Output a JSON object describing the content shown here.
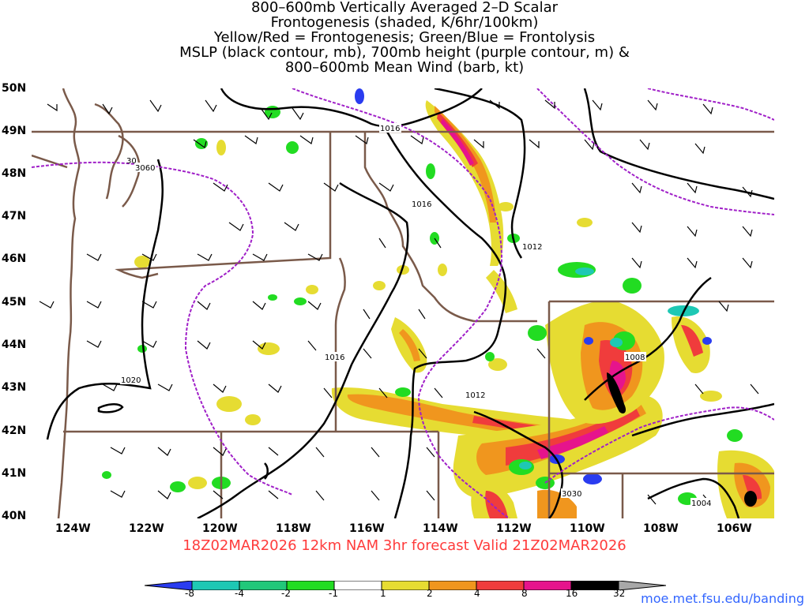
{
  "title_lines": [
    "800–600mb Vertically Averaged 2–D Scalar",
    "Frontogenesis (shaded, K/6hr/100km)",
    "Yellow/Red = Frontogenesis;  Green/Blue = Frontolysis",
    "MSLP (black contour, mb), 700mb height (purple contour, m) &",
    "800–600mb Mean Wind (barb, kt)"
  ],
  "lat_labels": [
    "50N",
    "49N",
    "48N",
    "47N",
    "46N",
    "45N",
    "44N",
    "43N",
    "42N",
    "41N",
    "40N"
  ],
  "lon_labels": [
    "124W",
    "122W",
    "120W",
    "118W",
    "116W",
    "114W",
    "112W",
    "110W",
    "108W",
    "106W"
  ],
  "contour_labels": {
    "mslp": [
      "1016",
      "1016",
      "1012",
      "1016",
      "1012",
      "1008",
      "1020",
      "1004"
    ],
    "height": [
      "3060",
      "3030"
    ],
    "partial": [
      "30"
    ]
  },
  "run_info": "18Z02MAR2026 12km NAM 3hr forecast Valid 21Z02MAR2026",
  "colorbar": {
    "labels": [
      "-8",
      "-4",
      "-2",
      "-1",
      "1",
      "2",
      "4",
      "8",
      "16",
      "32"
    ],
    "colors": [
      "#2a3cf0",
      "#1ec8b4",
      "#21c87a",
      "#22dc22",
      "#ffffff",
      "#e6dc32",
      "#f0961e",
      "#f03c3c",
      "#e6148c",
      "#000000",
      "#a8a8a8"
    ]
  },
  "credit": "moe.met.fsu.edu/banding",
  "colors": {
    "border": "#7a5a4a",
    "mslp": "#000000",
    "height": "#a020c8"
  }
}
